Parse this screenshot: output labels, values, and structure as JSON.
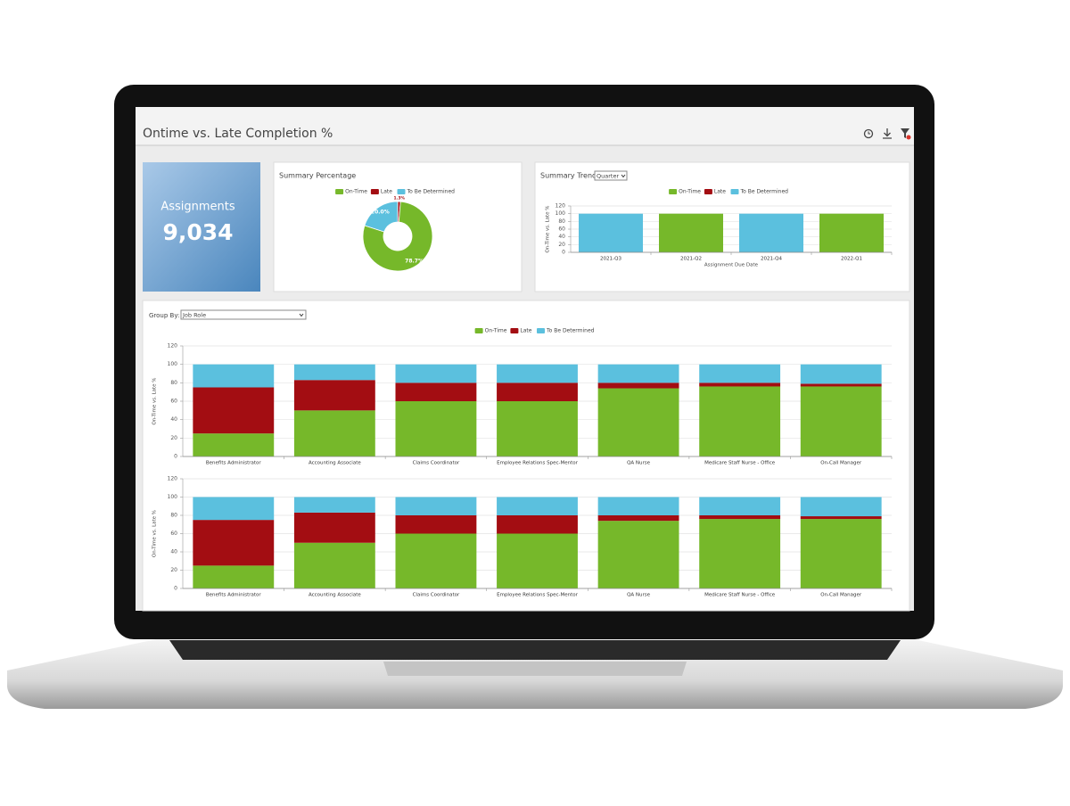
{
  "header": {
    "title": "Ontime vs. Late Completion %"
  },
  "kpi": {
    "label": "Assignments",
    "value": "9,034"
  },
  "controls": {
    "period": "Quarter",
    "group_by_label": "Group By:",
    "group_by": "Job Role"
  },
  "chart_data": [
    {
      "type": "pie",
      "title": "Summary Percentage",
      "donut": true,
      "labels": [
        "On-Time",
        "Late",
        "To Be Determined"
      ],
      "values": [
        78.7,
        1.3,
        20.0
      ],
      "value_labels": [
        "78.7%",
        "1.3%",
        "20.0%"
      ],
      "colors": [
        "#76b82a",
        "#a30d12",
        "#5bc0de"
      ]
    },
    {
      "type": "bar",
      "stacked": true,
      "title": "Summary Trend",
      "x_label": "Assignment Due Date",
      "y_label": "On-Time vs. Late %",
      "categories": [
        "2021-Q3",
        "2021-Q2",
        "2021-Q4",
        "2022-Q1"
      ],
      "series": [
        {
          "name": "On-Time",
          "color": "#76b82a",
          "values": [
            0,
            100,
            0,
            100
          ]
        },
        {
          "name": "Late",
          "color": "#a30d12",
          "values": [
            0,
            0,
            0,
            0
          ]
        },
        {
          "name": "To Be Determined",
          "color": "#5bc0de",
          "values": [
            100,
            0,
            100,
            0
          ]
        }
      ],
      "ylim": [
        0,
        120
      ],
      "yticks": [
        0,
        20,
        40,
        60,
        80,
        100,
        120
      ],
      "grid": true
    },
    {
      "type": "bar",
      "stacked": true,
      "y_label": "On-Time vs. Late %",
      "categories": [
        "Benefits Administrator",
        "Accounting Associate",
        "Claims Coordinator",
        "Employee Relations Spec-Mentor",
        "QA Nurse",
        "Medicare Staff Nurse - Office",
        "On-Call Manager"
      ],
      "series": [
        {
          "name": "On-Time",
          "color": "#76b82a",
          "values": [
            25,
            50,
            60,
            60,
            74,
            76,
            76
          ]
        },
        {
          "name": "Late",
          "color": "#a30d12",
          "values": [
            50,
            33,
            20,
            20,
            6,
            4,
            3
          ]
        },
        {
          "name": "To Be Determined",
          "color": "#5bc0de",
          "values": [
            25,
            17,
            20,
            20,
            20,
            20,
            21
          ]
        }
      ],
      "ylim": [
        0,
        120
      ],
      "yticks": [
        0,
        20,
        40,
        60,
        80,
        100,
        120
      ],
      "grid": true
    },
    {
      "type": "bar",
      "stacked": true,
      "y_label": "On-Time vs. Late %",
      "categories": [
        "Benefits Administrator",
        "Accounting Associate",
        "Claims Coordinator",
        "Employee Relations Spec-Mentor",
        "QA Nurse",
        "Medicare Staff Nurse - Office",
        "On-Call Manager"
      ],
      "series": [
        {
          "name": "On-Time",
          "color": "#76b82a",
          "values": [
            25,
            50,
            60,
            60,
            74,
            76,
            76
          ]
        },
        {
          "name": "Late",
          "color": "#a30d12",
          "values": [
            50,
            33,
            20,
            20,
            6,
            4,
            3
          ]
        },
        {
          "name": "To Be Determined",
          "color": "#5bc0de",
          "values": [
            25,
            17,
            20,
            20,
            20,
            20,
            21
          ]
        }
      ],
      "ylim": [
        0,
        120
      ],
      "yticks": [
        0,
        20,
        40,
        60,
        80,
        100,
        120
      ],
      "grid": true
    }
  ]
}
